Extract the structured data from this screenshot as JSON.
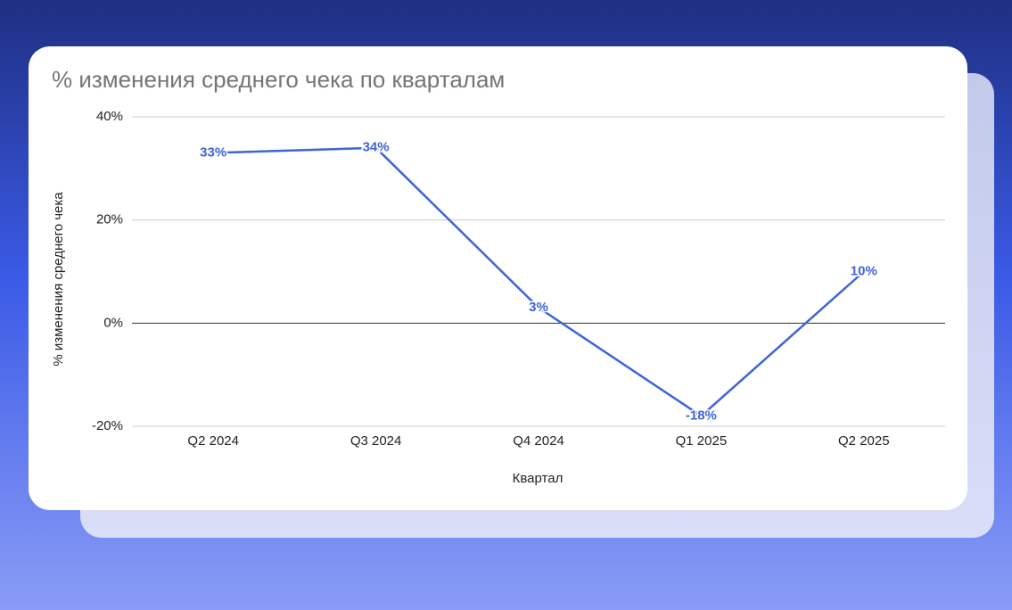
{
  "chart_data": {
    "type": "line",
    "title": "% изменения среднего чека по кварталам",
    "x_label": "Квартал",
    "y_label": "% изменения среднего чека",
    "categories": [
      "Q2 2024",
      "Q3 2024",
      "Q4 2024",
      "Q1 2025",
      "Q2 2025"
    ],
    "values": [
      33,
      34,
      3,
      -18,
      10
    ],
    "value_labels": [
      "33%",
      "34%",
      "3%",
      "-18%",
      "10%"
    ],
    "color": "#3d63dd",
    "ylim": [
      -20,
      40
    ],
    "yticks": [
      {
        "value": -20,
        "label": "-20%"
      },
      {
        "value": 0,
        "label": "0%"
      },
      {
        "value": 20,
        "label": "20%"
      },
      {
        "value": 40,
        "label": "40%"
      }
    ],
    "grid": true
  }
}
